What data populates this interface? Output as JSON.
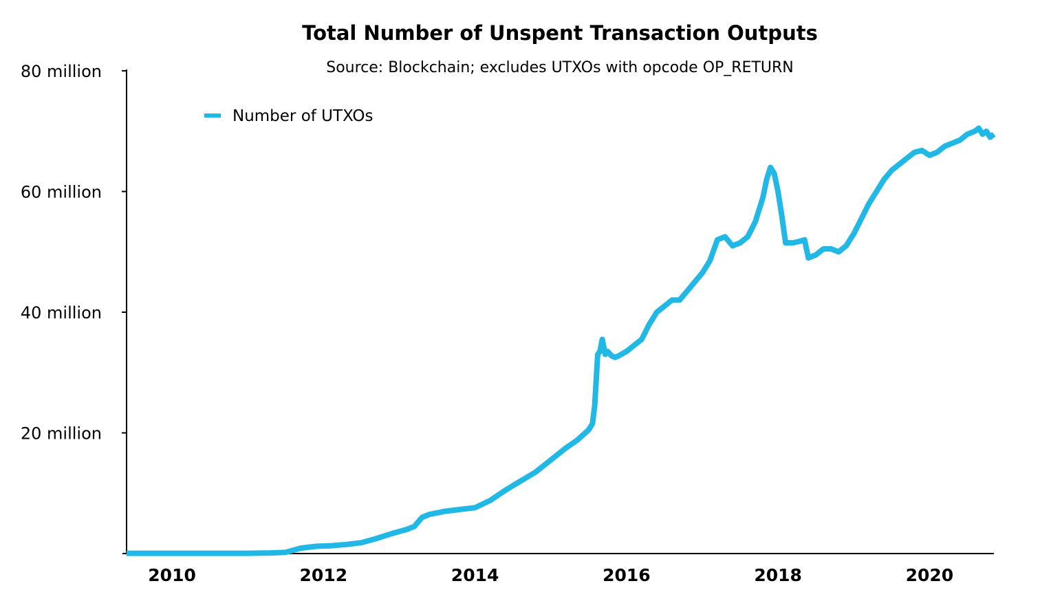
{
  "chart_data": {
    "type": "line",
    "title": "Total Number of Unspent Transaction Outputs",
    "subtitle": "Source: Blockchain; excludes UTXOs with opcode OP_RETURN",
    "xlabel": "",
    "ylabel": "",
    "xlim": [
      2009.4,
      2020.85
    ],
    "ylim": [
      0,
      80
    ],
    "x_ticks": [
      2010,
      2012,
      2014,
      2016,
      2018,
      2020
    ],
    "x_tick_labels": [
      "2010",
      "2012",
      "2014",
      "2016",
      "2018",
      "2020"
    ],
    "y_ticks": [
      20,
      40,
      60,
      80
    ],
    "y_tick_labels": [
      "20 million",
      "40 million",
      "60 million",
      "80 million"
    ],
    "y_unit": "million",
    "grid": false,
    "legend_position": "top-left",
    "series": [
      {
        "name": "Number of UTXOs",
        "color": "#22b8e6",
        "x": [
          2009.4,
          2010.0,
          2010.5,
          2011.0,
          2011.3,
          2011.5,
          2011.7,
          2011.9,
          2012.1,
          2012.3,
          2012.5,
          2012.7,
          2012.9,
          2013.1,
          2013.2,
          2013.3,
          2013.4,
          2013.6,
          2013.8,
          2014.0,
          2014.2,
          2014.4,
          2014.6,
          2014.8,
          2015.0,
          2015.2,
          2015.35,
          2015.5,
          2015.55,
          2015.58,
          2015.62,
          2015.65,
          2015.68,
          2015.72,
          2015.75,
          2015.8,
          2015.85,
          2015.9,
          2016.0,
          2016.1,
          2016.2,
          2016.3,
          2016.4,
          2016.5,
          2016.6,
          2016.7,
          2016.8,
          2016.9,
          2017.0,
          2017.1,
          2017.2,
          2017.3,
          2017.4,
          2017.5,
          2017.55,
          2017.6,
          2017.7,
          2017.8,
          2017.85,
          2017.9,
          2017.95,
          2018.0,
          2018.05,
          2018.1,
          2018.15,
          2018.2,
          2018.3,
          2018.35,
          2018.4,
          2018.5,
          2018.6,
          2018.7,
          2018.8,
          2018.9,
          2019.0,
          2019.1,
          2019.2,
          2019.3,
          2019.4,
          2019.5,
          2019.6,
          2019.7,
          2019.8,
          2019.9,
          2020.0,
          2020.1,
          2020.2,
          2020.3,
          2020.4,
          2020.5,
          2020.6,
          2020.65,
          2020.7,
          2020.75,
          2020.8,
          2020.85
        ],
        "values": [
          0.05,
          0.05,
          0.05,
          0.05,
          0.1,
          0.2,
          0.9,
          1.2,
          1.3,
          1.5,
          1.8,
          2.5,
          3.3,
          4.0,
          4.5,
          6.0,
          6.5,
          7.0,
          7.3,
          7.6,
          8.8,
          10.5,
          12.0,
          13.5,
          15.5,
          17.5,
          18.8,
          20.5,
          21.5,
          24.5,
          33.0,
          33.5,
          35.5,
          33.0,
          33.5,
          32.8,
          32.5,
          32.8,
          33.5,
          34.5,
          35.5,
          38.0,
          40.0,
          41.0,
          42.0,
          42.0,
          43.5,
          45.0,
          46.5,
          48.5,
          52.0,
          52.5,
          51.0,
          51.5,
          52.0,
          52.5,
          55.0,
          59.0,
          62.0,
          64.0,
          63.0,
          60.0,
          56.0,
          51.5,
          51.5,
          51.5,
          51.8,
          52.0,
          49.0,
          49.5,
          50.5,
          50.5,
          50.0,
          51.0,
          53.0,
          55.5,
          58.0,
          60.0,
          62.0,
          63.5,
          64.5,
          65.5,
          66.5,
          66.8,
          66.0,
          66.5,
          67.5,
          68.0,
          68.5,
          69.5,
          70.0,
          70.5,
          69.5,
          70.0,
          69.0,
          69.5
        ]
      }
    ]
  }
}
